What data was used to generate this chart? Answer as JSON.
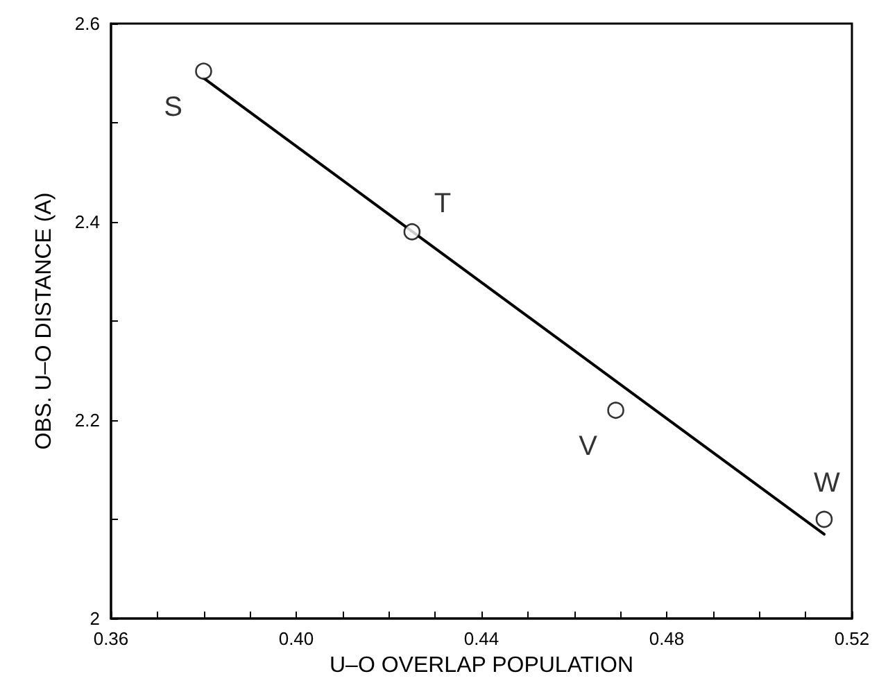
{
  "chart_data": {
    "type": "scatter",
    "xlabel": "U–O OVERLAP POPULATION",
    "ylabel": "OBS. U–O DISTANCE (A)",
    "xlim": [
      0.36,
      0.52
    ],
    "xticks": [
      {
        "value": 0.36,
        "label": "0.36"
      },
      {
        "value": 0.37,
        "label": null
      },
      {
        "value": 0.38,
        "label": null
      },
      {
        "value": 0.39,
        "label": null
      },
      {
        "value": 0.4,
        "label": "0.40"
      },
      {
        "value": 0.41,
        "label": null
      },
      {
        "value": 0.42,
        "label": null
      },
      {
        "value": 0.43,
        "label": null
      },
      {
        "value": 0.44,
        "label": "0.44"
      },
      {
        "value": 0.45,
        "label": null
      },
      {
        "value": 0.46,
        "label": null
      },
      {
        "value": 0.47,
        "label": null
      },
      {
        "value": 0.48,
        "label": "0.48"
      },
      {
        "value": 0.49,
        "label": null
      },
      {
        "value": 0.5,
        "label": null
      },
      {
        "value": 0.51,
        "label": null
      },
      {
        "value": 0.52,
        "label": "0.52"
      }
    ],
    "ylim": [
      2,
      2.6
    ],
    "yticks": [
      2,
      {
        "value": 2.1,
        "label": null
      },
      2.2,
      {
        "value": 2.3,
        "label": null
      },
      2.4,
      {
        "value": 2.5,
        "label": null
      },
      2.6
    ],
    "grid": false,
    "marker": "circle",
    "series": [
      {
        "color": "#000000",
        "x": [
          0.38,
          0.425,
          0.469,
          0.514
        ],
        "values": [
          2.552,
          2.39,
          2.21,
          2.1
        ]
      },
      {
        "type": "line",
        "color": "#000000",
        "marker": "none",
        "line_style": "solid",
        "x": [
          0.38,
          0.514
        ],
        "values": [
          2.545,
          2.085
        ]
      }
    ],
    "annotations": [
      {
        "text": "S",
        "x": 0.38,
        "y": 2.552
      },
      {
        "text": "T",
        "x": 0.425,
        "y": 2.39
      },
      {
        "text": "V",
        "x": 0.469,
        "y": 2.21
      },
      {
        "text": "W",
        "x": 0.514,
        "y": 2.1
      }
    ]
  }
}
